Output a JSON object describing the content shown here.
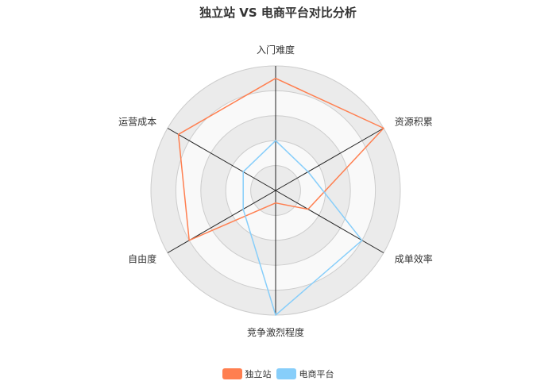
{
  "chart_data": {
    "type": "radar",
    "title": "独立站 VS 电商平台对比分析",
    "indicators": [
      "入门难度",
      "资源积累",
      "成单效率",
      "竞争激烈程度",
      "自由度",
      "运营成本"
    ],
    "max": 10,
    "split_number": 5,
    "series": [
      {
        "name": "独立站",
        "color": "#ff7f50",
        "values": [
          9,
          10,
          3,
          1,
          8,
          9
        ]
      },
      {
        "name": "电商平台",
        "color": "#87cefa",
        "values": [
          4,
          3,
          8,
          10,
          3,
          3
        ]
      }
    ],
    "legend_position": "bottom-center"
  }
}
